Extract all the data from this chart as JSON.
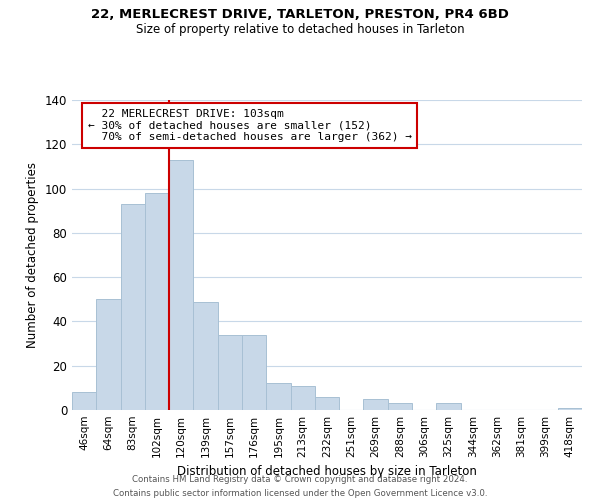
{
  "title_line1": "22, MERLECREST DRIVE, TARLETON, PRESTON, PR4 6BD",
  "title_line2": "Size of property relative to detached houses in Tarleton",
  "xlabel": "Distribution of detached houses by size in Tarleton",
  "ylabel": "Number of detached properties",
  "bar_labels": [
    "46sqm",
    "64sqm",
    "83sqm",
    "102sqm",
    "120sqm",
    "139sqm",
    "157sqm",
    "176sqm",
    "195sqm",
    "213sqm",
    "232sqm",
    "251sqm",
    "269sqm",
    "288sqm",
    "306sqm",
    "325sqm",
    "344sqm",
    "362sqm",
    "381sqm",
    "399sqm",
    "418sqm"
  ],
  "bar_values": [
    8,
    50,
    93,
    98,
    113,
    49,
    34,
    34,
    12,
    11,
    6,
    0,
    5,
    3,
    0,
    3,
    0,
    0,
    0,
    0,
    1
  ],
  "bar_color": "#c8d8e8",
  "bar_edge_color": "#a8c0d4",
  "property_label": "22 MERLECREST DRIVE: 103sqm",
  "pct_smaller": 30,
  "n_smaller": 152,
  "pct_larger": 70,
  "n_larger": 362,
  "vline_x_index": 3.5,
  "vline_color": "#cc0000",
  "annotation_box_edge_color": "#cc0000",
  "ylim": [
    0,
    140
  ],
  "yticks": [
    0,
    20,
    40,
    60,
    80,
    100,
    120,
    140
  ],
  "footer_line1": "Contains HM Land Registry data © Crown copyright and database right 2024.",
  "footer_line2": "Contains public sector information licensed under the Open Government Licence v3.0.",
  "background_color": "#ffffff",
  "grid_color": "#c8d8e8"
}
